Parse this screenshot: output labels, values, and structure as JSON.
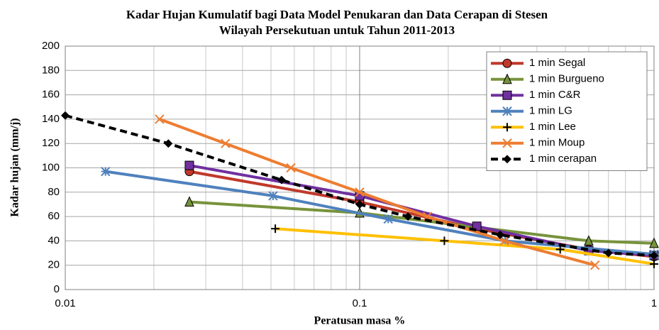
{
  "chart_data": {
    "type": "line",
    "title": "Kadar Hujan Kumulatif bagi Data Model Penukaran dan Data Cerapan di Stesen",
    "subtitle": "Wilayah Persekutuan untuk Tahun 2011-2013",
    "xlabel": "Peratusan masa %",
    "ylabel": "Kadar hujan (mm/j)",
    "xscale": "log",
    "xlim": [
      0.01,
      1
    ],
    "xticks": [
      0.01,
      0.1,
      1
    ],
    "ylim": [
      0,
      200
    ],
    "yticks": [
      0,
      20,
      40,
      60,
      80,
      100,
      120,
      140,
      160,
      180,
      200
    ],
    "grid": true,
    "minor_grid": true,
    "legend": "upper right",
    "series": [
      {
        "name": "1 min Segal",
        "color": "#c0392b",
        "marker": "circle",
        "x": [
          0.0264,
          0.1,
          0.25,
          0.6,
          1
        ],
        "values": [
          97,
          72,
          50,
          33,
          27
        ]
      },
      {
        "name": "1 min Burgueno",
        "color": "#77933c",
        "marker": "triangle",
        "x": [
          0.0264,
          0.1,
          0.6,
          1
        ],
        "values": [
          72,
          63,
          40,
          38
        ]
      },
      {
        "name": "1 min C&R",
        "color": "#7030a0",
        "marker": "square",
        "x": [
          0.0264,
          0.1,
          0.25,
          0.6,
          1
        ],
        "values": [
          102,
          77,
          52,
          32,
          28
        ]
      },
      {
        "name": "1 min LG",
        "color": "#4f81bd",
        "marker": "asterisk",
        "x": [
          0.0137,
          0.0508,
          0.125,
          0.312,
          1
        ],
        "values": [
          97,
          77,
          58,
          40,
          29
        ]
      },
      {
        "name": "1 min Lee",
        "color": "#ffc000",
        "marker": "plus",
        "x": [
          0.0517,
          0.194,
          0.48,
          1
        ],
        "values": [
          50,
          40,
          33,
          21
        ]
      },
      {
        "name": "1 min Moup",
        "color": "#ed7d31",
        "marker": "x",
        "x": [
          0.0209,
          0.035,
          0.0584,
          0.1,
          0.17,
          0.31,
          0.63
        ],
        "values": [
          140,
          120,
          100,
          80,
          60,
          40,
          20
        ]
      },
      {
        "name": "1 min cerapan",
        "color": "#000000",
        "marker": "diamond",
        "dash": true,
        "x": [
          0.01,
          0.0224,
          0.0543,
          0.1,
          0.146,
          0.3,
          0.7,
          1
        ],
        "values": [
          143,
          120,
          90,
          70,
          60,
          45,
          30,
          28
        ]
      }
    ]
  }
}
